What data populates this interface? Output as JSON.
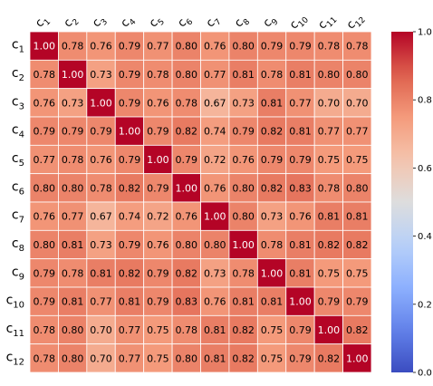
{
  "chart_data": {
    "type": "heatmap",
    "title": "",
    "xlabel": "",
    "ylabel": "",
    "row_labels": [
      {
        "base": "c",
        "sub": "1"
      },
      {
        "base": "c",
        "sub": "2"
      },
      {
        "base": "c",
        "sub": "3"
      },
      {
        "base": "c",
        "sub": "4"
      },
      {
        "base": "c",
        "sub": "5"
      },
      {
        "base": "c",
        "sub": "6"
      },
      {
        "base": "c",
        "sub": "7"
      },
      {
        "base": "c",
        "sub": "8"
      },
      {
        "base": "c",
        "sub": "9"
      },
      {
        "base": "c",
        "sub": "10"
      },
      {
        "base": "c",
        "sub": "11"
      },
      {
        "base": "c",
        "sub": "12"
      }
    ],
    "column_labels": [
      {
        "base": "c",
        "sub": "1"
      },
      {
        "base": "c",
        "sub": "2"
      },
      {
        "base": "c",
        "sub": "3"
      },
      {
        "base": "c",
        "sub": "4"
      },
      {
        "base": "c",
        "sub": "5"
      },
      {
        "base": "c",
        "sub": "6"
      },
      {
        "base": "c",
        "sub": "7"
      },
      {
        "base": "c",
        "sub": "8"
      },
      {
        "base": "c",
        "sub": "9"
      },
      {
        "base": "c",
        "sub": "10"
      },
      {
        "base": "c",
        "sub": "11"
      },
      {
        "base": "c",
        "sub": "12"
      }
    ],
    "values": [
      [
        1.0,
        0.78,
        0.76,
        0.79,
        0.77,
        0.8,
        0.76,
        0.8,
        0.79,
        0.79,
        0.78,
        0.78
      ],
      [
        0.78,
        1.0,
        0.73,
        0.79,
        0.78,
        0.8,
        0.77,
        0.81,
        0.78,
        0.81,
        0.8,
        0.8
      ],
      [
        0.76,
        0.73,
        1.0,
        0.79,
        0.76,
        0.78,
        0.67,
        0.73,
        0.81,
        0.77,
        0.7,
        0.7
      ],
      [
        0.79,
        0.79,
        0.79,
        1.0,
        0.79,
        0.82,
        0.74,
        0.79,
        0.82,
        0.81,
        0.77,
        0.77
      ],
      [
        0.77,
        0.78,
        0.76,
        0.79,
        1.0,
        0.79,
        0.72,
        0.76,
        0.79,
        0.79,
        0.75,
        0.75
      ],
      [
        0.8,
        0.8,
        0.78,
        0.82,
        0.79,
        1.0,
        0.76,
        0.8,
        0.82,
        0.83,
        0.78,
        0.8
      ],
      [
        0.76,
        0.77,
        0.67,
        0.74,
        0.72,
        0.76,
        1.0,
        0.8,
        0.73,
        0.76,
        0.81,
        0.81
      ],
      [
        0.8,
        0.81,
        0.73,
        0.79,
        0.76,
        0.8,
        0.8,
        1.0,
        0.78,
        0.81,
        0.82,
        0.82
      ],
      [
        0.79,
        0.78,
        0.81,
        0.82,
        0.79,
        0.82,
        0.73,
        0.78,
        1.0,
        0.81,
        0.75,
        0.75
      ],
      [
        0.79,
        0.81,
        0.77,
        0.81,
        0.79,
        0.83,
        0.76,
        0.81,
        0.81,
        1.0,
        0.79,
        0.79
      ],
      [
        0.78,
        0.8,
        0.7,
        0.77,
        0.75,
        0.78,
        0.81,
        0.82,
        0.75,
        0.79,
        1.0,
        0.82
      ],
      [
        0.78,
        0.8,
        0.7,
        0.77,
        0.75,
        0.8,
        0.81,
        0.82,
        0.75,
        0.79,
        0.82,
        1.0
      ]
    ],
    "value_format_decimals": 2,
    "colormap": "coolwarm",
    "value_range": [
      0.0,
      1.0
    ],
    "colorbar": {
      "ticks": [
        0.0,
        0.2,
        0.4,
        0.6,
        0.8,
        1.0
      ],
      "tick_labels": [
        "0.0",
        "0.2",
        "0.4",
        "0.6",
        "0.8",
        "1.0"
      ],
      "placement": "right"
    },
    "grid": true,
    "grid_color": "#ffffff",
    "x_tick_rotation_deg": -45,
    "x_tick_position": "top"
  }
}
